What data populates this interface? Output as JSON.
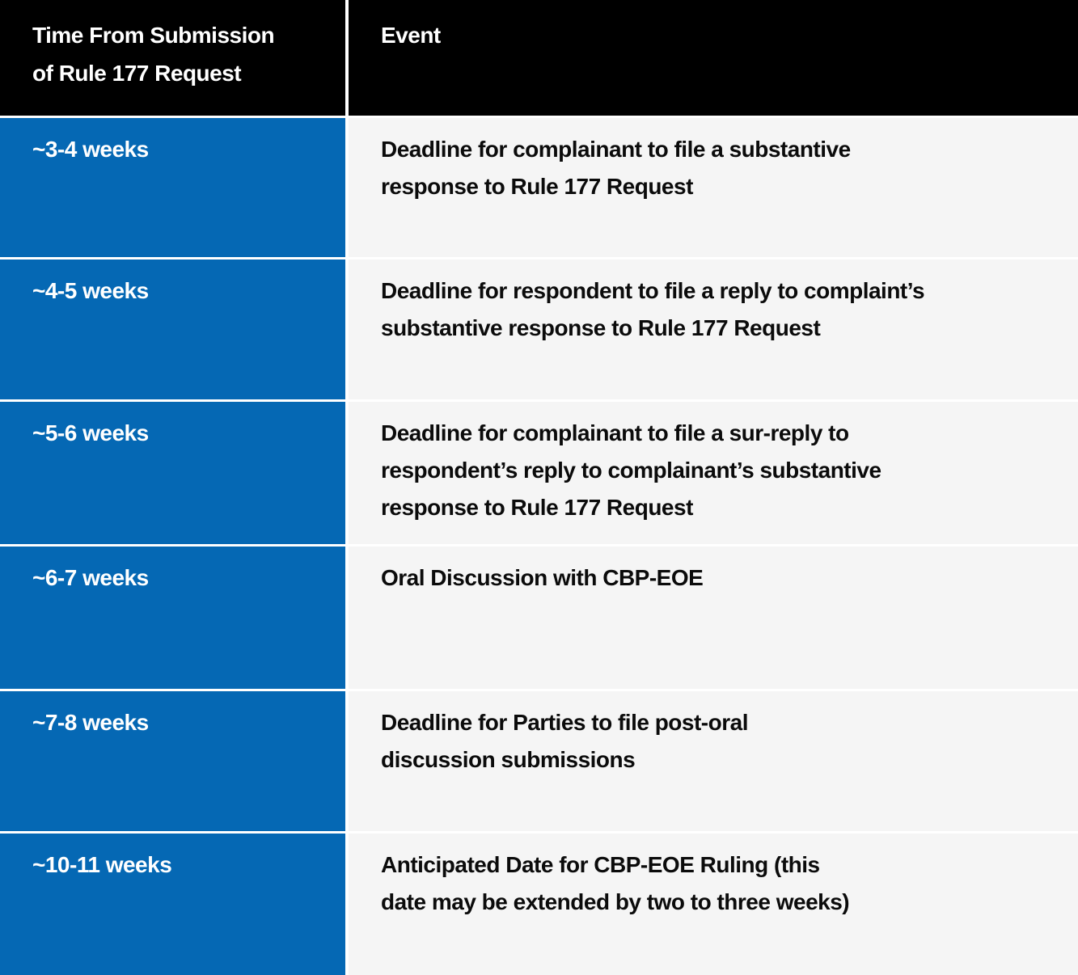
{
  "table": {
    "header": {
      "time_lines": [
        "Time From Submission",
        "of Rule 177 Request"
      ],
      "event_label": "Event"
    },
    "rows": [
      {
        "time": "~3-4 weeks",
        "event_lines": [
          "Deadline for complainant to file a substantive",
          "response to Rule 177 Request"
        ]
      },
      {
        "time": "~4-5 weeks",
        "event_lines": [
          "Deadline for respondent to file a reply to complaint’s",
          "substantive response to Rule 177 Request"
        ]
      },
      {
        "time": "~5-6 weeks",
        "event_lines": [
          "Deadline for complainant to file a sur-reply to",
          "respondent’s reply to complainant’s substantive",
          "response to Rule 177 Request"
        ]
      },
      {
        "time": "~6-7 weeks",
        "event_lines": [
          "Oral Discussion with CBP-EOE"
        ]
      },
      {
        "time": "~7-8 weeks",
        "event_lines": [
          "Deadline for Parties to file post-oral",
          "discussion submissions"
        ]
      },
      {
        "time": "~10-11 weeks",
        "event_lines": [
          "Anticipated Date for CBP-EOE Ruling (this",
          "date may be extended by two to three weeks)"
        ]
      }
    ],
    "colors": {
      "header_bg": "#000000",
      "header_text": "#ffffff",
      "time_cell_bg": "#0568b4",
      "time_cell_text": "#ffffff",
      "event_cell_bg": "#f5f5f5",
      "event_cell_text": "#0b0b0b",
      "divider": "#ffffff"
    }
  }
}
